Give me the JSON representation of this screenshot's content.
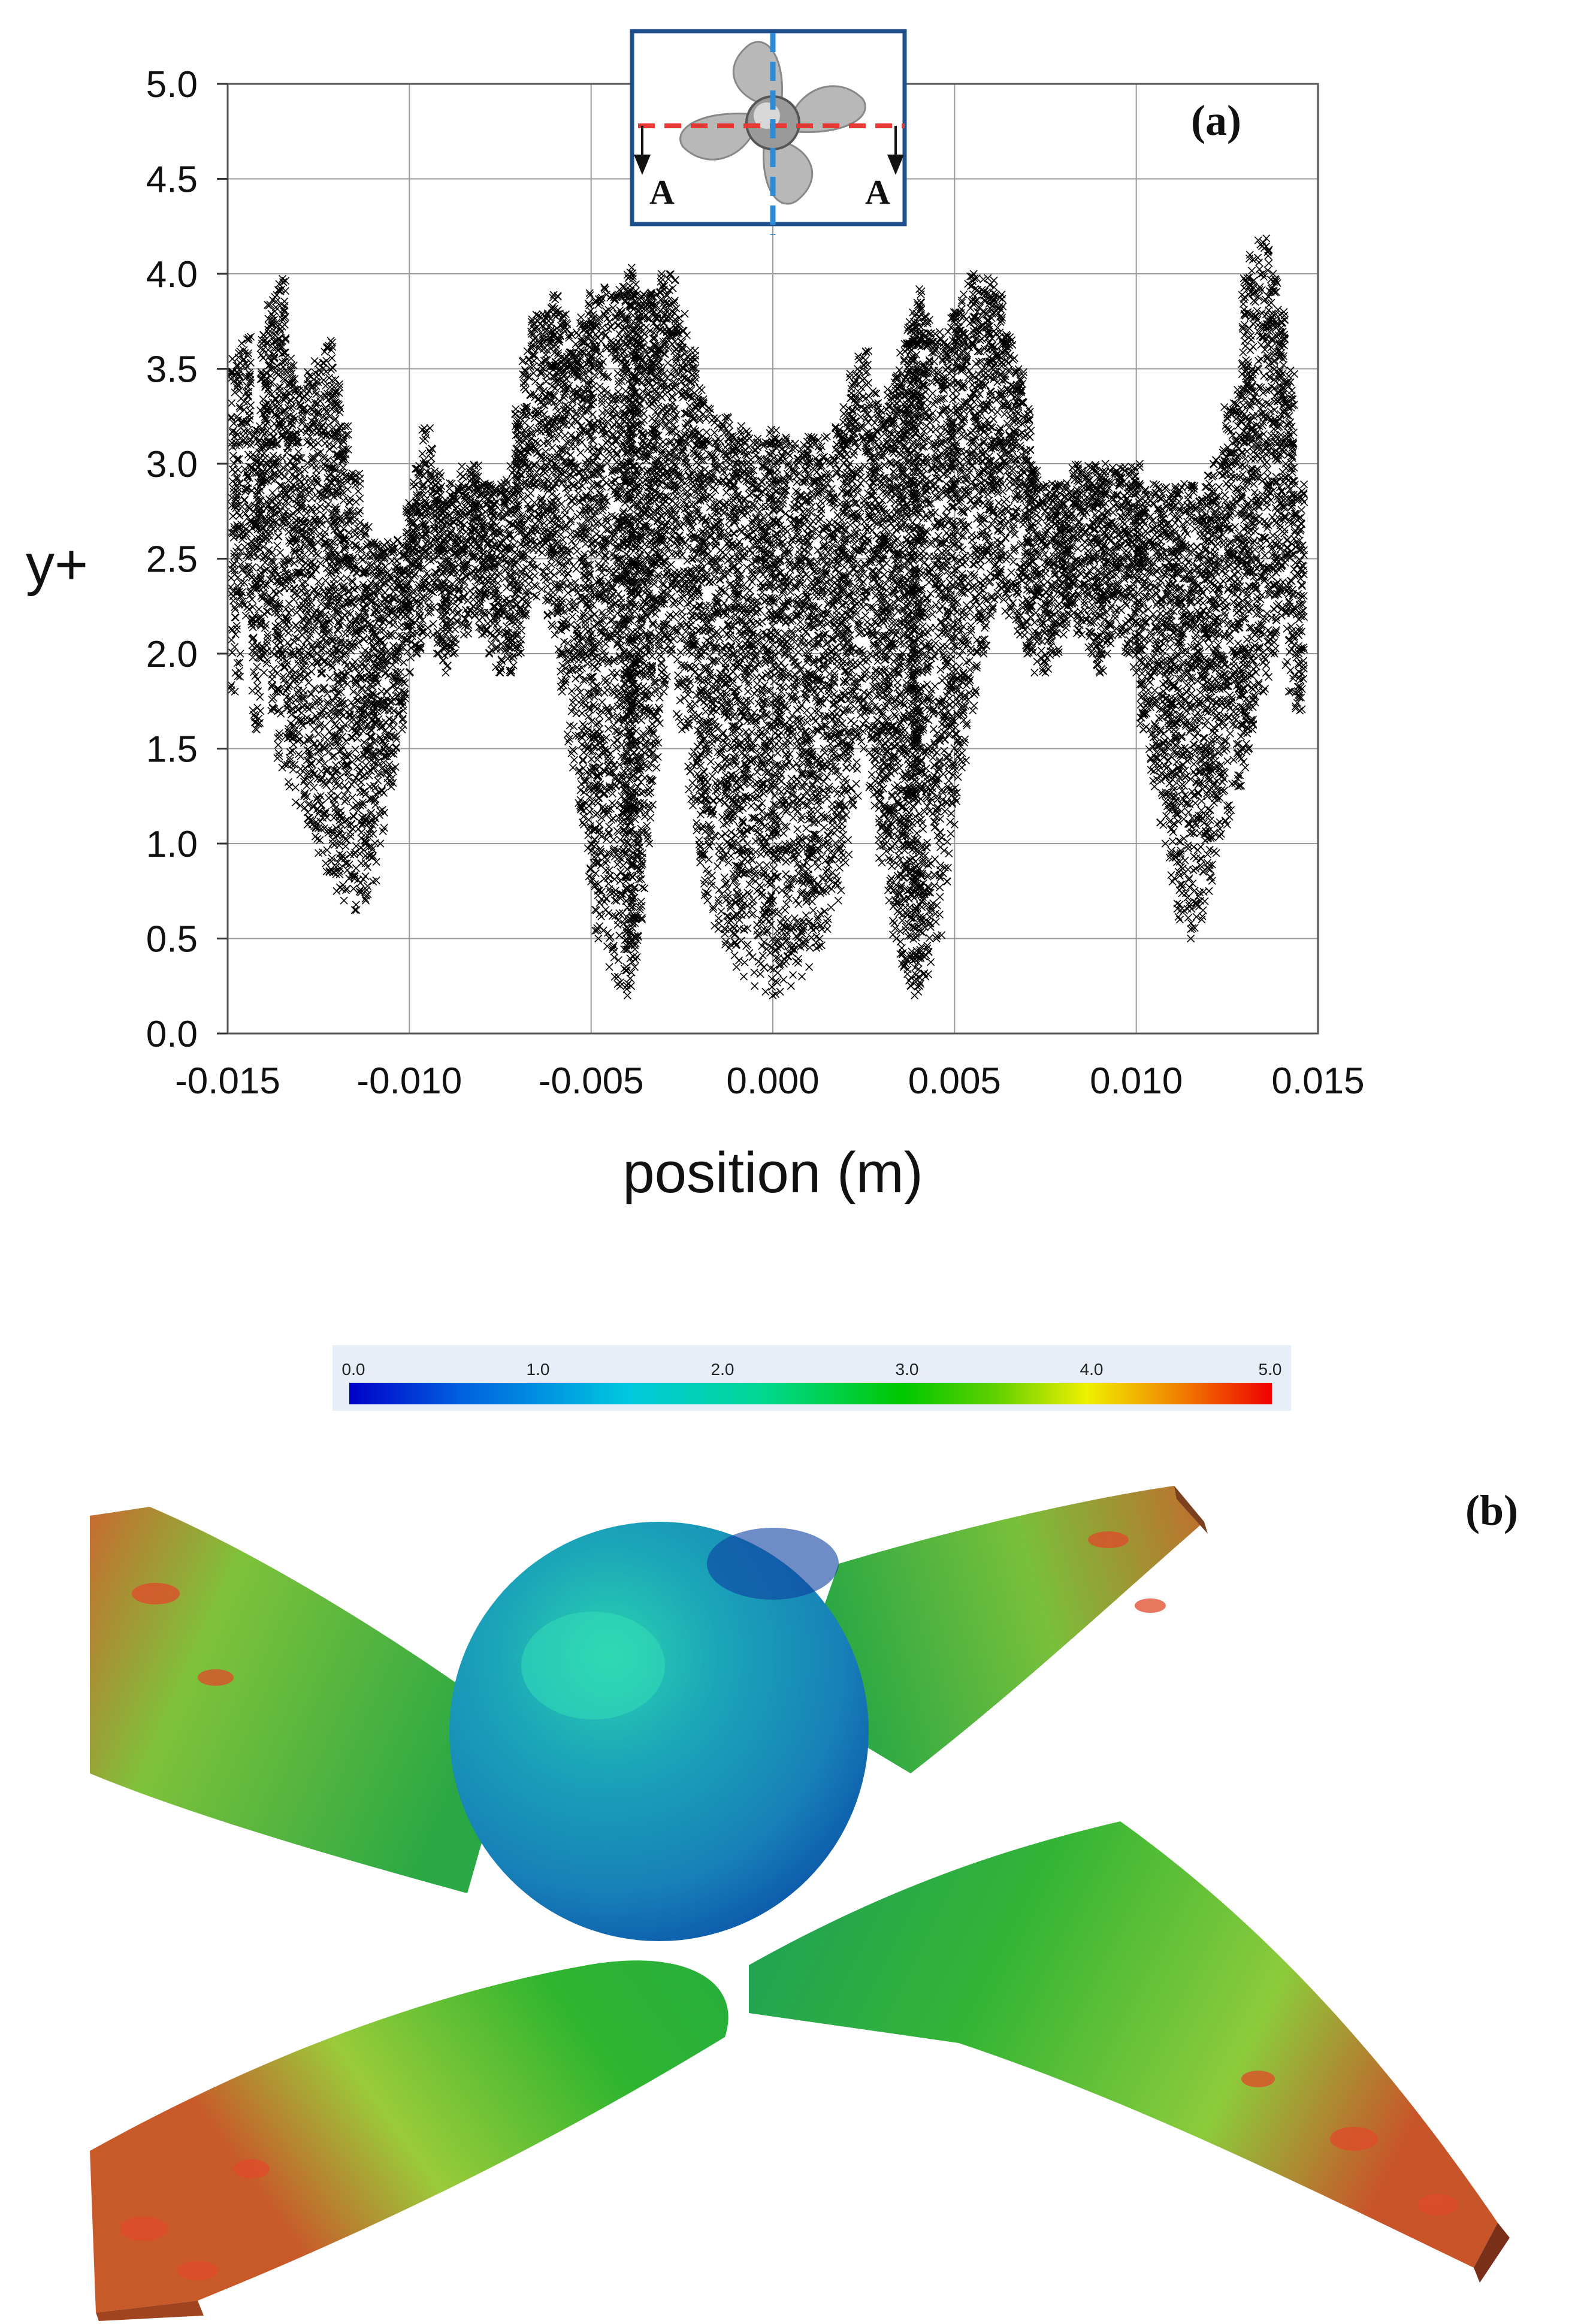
{
  "chart_data": [
    {
      "type": "scatter",
      "panel_label": "(a)",
      "xlabel": "position (m)",
      "ylabel": "y+",
      "xlim": [
        -0.015,
        0.015
      ],
      "ylim": [
        0.0,
        5.0
      ],
      "x_ticks": [
        "-0.015",
        "-0.010",
        "-0.005",
        "0.000",
        "0.005",
        "0.010",
        "0.015"
      ],
      "x_tick_values": [
        -0.015,
        -0.01,
        -0.005,
        0.0,
        0.005,
        0.01,
        0.015
      ],
      "y_ticks": [
        "0.0",
        "0.5",
        "1.0",
        "1.5",
        "2.0",
        "2.5",
        "3.0",
        "3.5",
        "4.0",
        "4.5",
        "5.0"
      ],
      "y_tick_values": [
        0.0,
        0.5,
        1.0,
        1.5,
        2.0,
        2.5,
        3.0,
        3.5,
        4.0,
        4.5,
        5.0
      ],
      "grid": true,
      "marker": "x",
      "marker_color": "#000000",
      "series": [
        {
          "x": [
            -0.0148,
            -0.0145,
            -0.0142,
            -0.014,
            -0.0138,
            -0.0135,
            -0.0133,
            -0.013,
            -0.0128,
            -0.0125,
            -0.0122,
            -0.012,
            -0.0118,
            -0.0115,
            -0.0112,
            -0.011,
            -0.0108,
            -0.0105,
            -0.0102,
            -0.01,
            -0.0098,
            -0.0095,
            -0.0092,
            -0.009,
            -0.0088,
            -0.0085,
            -0.0082,
            -0.008,
            -0.0078,
            -0.0075,
            -0.0072,
            -0.007,
            -0.0068,
            -0.0065,
            -0.0062,
            -0.006,
            -0.0058,
            -0.0055,
            -0.0052,
            -0.005,
            -0.0048,
            -0.0045,
            -0.0042,
            -0.004,
            -0.0039,
            -0.0038,
            -0.0036,
            -0.0034,
            -0.0032,
            -0.003,
            -0.0028,
            -0.0025,
            -0.0022,
            -0.002,
            -0.0018,
            -0.0015,
            -0.0012,
            -0.001,
            -0.0008,
            -0.0005,
            -0.0002,
            0.0,
            0.0002,
            0.0005,
            0.0008,
            0.001,
            0.0012,
            0.0015,
            0.0018,
            0.002,
            0.0022,
            0.0025,
            0.0028,
            0.003,
            0.0032,
            0.0034,
            0.0036,
            0.0038,
            0.0039,
            0.004,
            0.0042,
            0.0045,
            0.0048,
            0.005,
            0.0052,
            0.0055,
            0.0058,
            0.006,
            0.0062,
            0.0065,
            0.0068,
            0.007,
            0.0072,
            0.0075,
            0.0078,
            0.008,
            0.0082,
            0.0085,
            0.0088,
            0.009,
            0.0092,
            0.0095,
            0.0098,
            0.01,
            0.0102,
            0.0105,
            0.0108,
            0.011,
            0.0112,
            0.0115,
            0.0118,
            0.012,
            0.0122,
            0.0125,
            0.0128,
            0.013,
            0.0132,
            0.0135,
            0.0138,
            0.014,
            0.0142,
            0.0145
          ],
          "y": [
            1.8,
            2.2,
            1.6,
            1.9,
            1.7,
            1.4,
            1.3,
            1.2,
            1.1,
            0.95,
            0.85,
            0.75,
            0.7,
            0.65,
            0.7,
            0.8,
            1.0,
            1.3,
            1.6,
            1.9,
            2.0,
            2.1,
            2.0,
            1.9,
            2.0,
            2.1,
            2.2,
            2.1,
            2.0,
            1.9,
            1.9,
            2.0,
            2.2,
            2.3,
            2.2,
            2.1,
            1.8,
            1.4,
            1.1,
            0.8,
            0.5,
            0.35,
            0.25,
            0.2,
            0.25,
            0.35,
            0.6,
            1.0,
            1.4,
            1.8,
            2.0,
            1.6,
            1.2,
            0.9,
            0.7,
            0.55,
            0.45,
            0.35,
            0.3,
            0.25,
            0.22,
            0.2,
            0.22,
            0.25,
            0.3,
            0.35,
            0.45,
            0.55,
            0.7,
            0.9,
            1.2,
            1.5,
            1.2,
            0.9,
            0.7,
            0.5,
            0.35,
            0.25,
            0.2,
            0.22,
            0.3,
            0.5,
            0.8,
            1.1,
            1.4,
            1.7,
            2.0,
            2.2,
            2.3,
            2.2,
            2.1,
            2.0,
            1.9,
            1.9,
            2.0,
            2.1,
            2.2,
            2.1,
            2.0,
            1.9,
            2.0,
            2.1,
            2.0,
            1.9,
            1.6,
            1.3,
            1.0,
            0.8,
            0.6,
            0.5,
            0.6,
            0.75,
            0.95,
            1.1,
            1.3,
            1.4,
            1.6,
            1.8,
            2.0,
            2.2,
            1.8,
            1.7
          ],
          "y_spread_above": [
            1.8,
            1.5,
            1.6,
            1.8,
            2.2,
            2.6,
            2.3,
            2.2,
            2.4,
            2.6,
            2.8,
            2.7,
            2.5,
            2.3,
            2.0,
            1.8,
            1.6,
            1.3,
            1.0,
            0.9,
            1.0,
            1.1,
            1.0,
            0.9,
            0.9,
            0.9,
            0.8,
            0.8,
            0.9,
            1.0,
            1.1,
            1.3,
            1.4,
            1.5,
            1.6,
            1.8,
            2.0,
            2.3,
            2.7,
            3.1,
            3.4,
            3.6,
            3.7,
            3.8,
            3.8,
            3.6,
            3.3,
            2.9,
            2.5,
            2.2,
            2.0,
            2.2,
            2.4,
            2.5,
            2.6,
            2.7,
            2.8,
            2.8,
            2.9,
            2.9,
            2.9,
            3.0,
            2.9,
            2.9,
            2.8,
            2.8,
            2.7,
            2.6,
            2.5,
            2.4,
            2.3,
            2.1,
            2.2,
            2.4,
            2.7,
            3.0,
            3.3,
            3.5,
            3.6,
            3.7,
            3.5,
            3.2,
            2.9,
            2.7,
            2.5,
            2.3,
            2.0,
            1.8,
            1.6,
            1.5,
            1.4,
            1.3,
            1.1,
            1.0,
            0.9,
            0.8,
            0.8,
            0.9,
            1.0,
            1.1,
            1.0,
            0.9,
            1.0,
            1.1,
            1.3,
            1.6,
            1.9,
            2.1,
            2.3,
            2.4,
            2.3,
            2.2,
            2.1,
            2.2,
            2.1,
            2.6,
            2.5,
            2.4,
            2.0,
            1.6,
            1.7,
            1.2
          ]
        }
      ]
    },
    {
      "type": "heatmap",
      "panel_label": "(b)",
      "colorbar_ticks": [
        "0.0",
        "1.0",
        "2.0",
        "3.0",
        "4.0",
        "5.0"
      ],
      "colorbar_range": [
        0.0,
        5.0
      ],
      "colormap": [
        "#0000c8",
        "#0060e0",
        "#00c8e0",
        "#00d890",
        "#00c800",
        "#60d000",
        "#f0f000",
        "#f08000",
        "#f00000"
      ]
    }
  ],
  "inset": {
    "section_labels": [
      "A",
      "A"
    ],
    "cut_line_color": "#e53935",
    "axis_line_color": "#2e8bd6",
    "frame_color": "#1f4e8c"
  }
}
